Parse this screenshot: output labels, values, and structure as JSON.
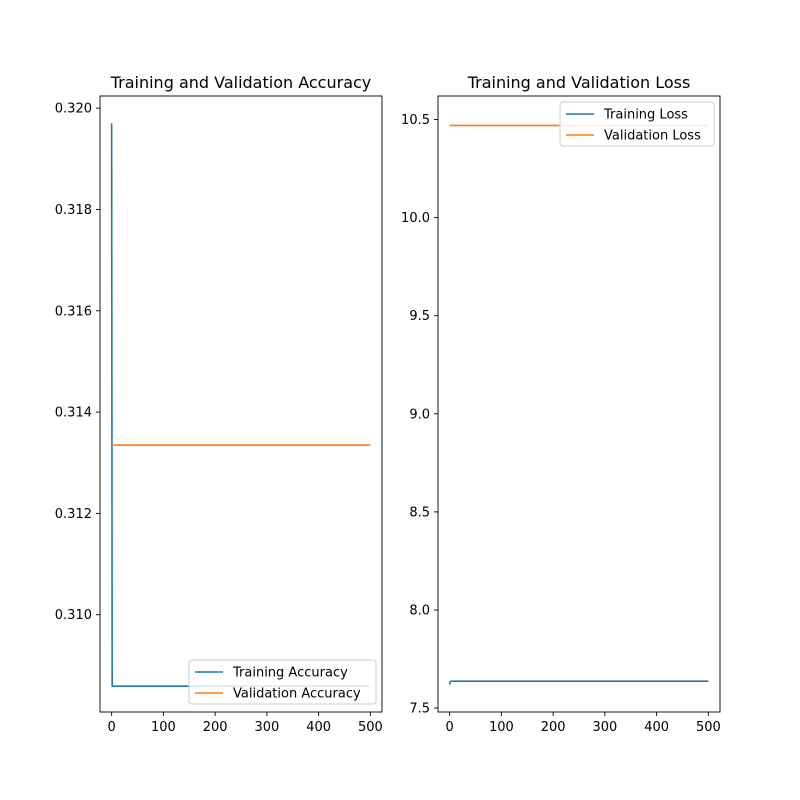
{
  "colors": {
    "training": "#1f77b4",
    "validation": "#ff7f0e",
    "axes": "#000000",
    "legend_border": "#cccccc"
  },
  "chart_data": [
    {
      "type": "line",
      "title": "Training and Validation Accuracy",
      "xlabel": "",
      "ylabel": "",
      "xlim": [
        -22.5,
        522.5
      ],
      "ylim": [
        0.30808,
        0.32024
      ],
      "x_ticks": [
        0,
        100,
        200,
        300,
        400,
        500
      ],
      "y_ticks": [
        0.31,
        0.312,
        0.314,
        0.316,
        0.318,
        0.32
      ],
      "y_tick_labels": [
        "0.310",
        "0.312",
        "0.314",
        "0.316",
        "0.318",
        "0.320"
      ],
      "grid": false,
      "legend_placement": "lower right",
      "series": [
        {
          "name": "Training Accuracy",
          "color": "#1f77b4",
          "x": [
            0,
            1,
            100,
            200,
            300,
            400,
            500
          ],
          "y": [
            0.3197,
            0.30859,
            0.30859,
            0.30859,
            0.30859,
            0.30859,
            0.30859
          ]
        },
        {
          "name": "Validation Accuracy",
          "color": "#ff7f0e",
          "x": [
            0,
            100,
            200,
            300,
            400,
            500
          ],
          "y": [
            0.31335,
            0.31335,
            0.31335,
            0.31335,
            0.31335,
            0.31335
          ]
        }
      ]
    },
    {
      "type": "line",
      "title": "Training and Validation Loss",
      "xlabel": "",
      "ylabel": "",
      "xlim": [
        -22.5,
        522.5
      ],
      "ylim": [
        7.48,
        10.62
      ],
      "x_ticks": [
        0,
        100,
        200,
        300,
        400,
        500
      ],
      "y_ticks": [
        7.5,
        8.0,
        8.5,
        9.0,
        9.5,
        10.0,
        10.5
      ],
      "y_tick_labels": [
        "7.5",
        "8.0",
        "8.5",
        "9.0",
        "9.5",
        "10.0",
        "10.5"
      ],
      "grid": false,
      "legend_placement": "upper right",
      "series": [
        {
          "name": "Training Loss",
          "color": "#1f77b4",
          "x": [
            0,
            1,
            3,
            100,
            200,
            300,
            400,
            500
          ],
          "y": [
            7.62,
            7.635,
            7.637,
            7.637,
            7.637,
            7.637,
            7.637,
            7.637
          ]
        },
        {
          "name": "Validation Loss",
          "color": "#ff7f0e",
          "x": [
            0,
            100,
            200,
            300,
            400,
            500
          ],
          "y": [
            10.47,
            10.47,
            10.47,
            10.47,
            10.47,
            10.47
          ]
        }
      ]
    }
  ]
}
